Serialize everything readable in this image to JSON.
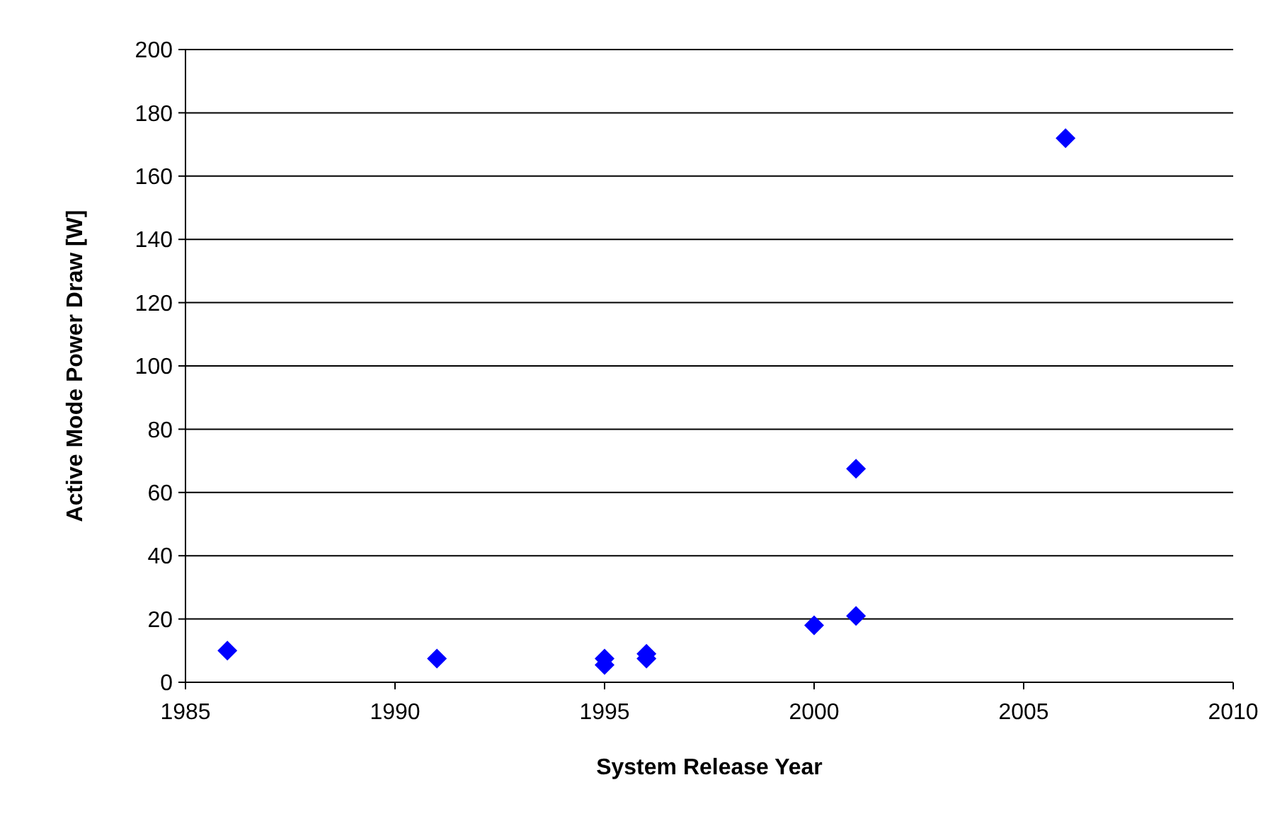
{
  "chart_data": {
    "type": "scatter",
    "xlabel": "System Release Year",
    "ylabel": "Active Mode Power Draw [W]",
    "x": [
      1986,
      1991,
      1995,
      1995,
      1996,
      1996,
      2000,
      2001,
      2001,
      2006
    ],
    "series": [
      {
        "color": "#0000ff",
        "values": [
          10,
          7.5,
          7.5,
          5.5,
          9,
          7.5,
          18,
          21,
          67.5,
          172
        ]
      }
    ],
    "marker": "diamond",
    "grid": "y",
    "xlim": [
      1985,
      2010
    ],
    "xticks": [
      1985,
      1990,
      1995,
      2000,
      2005,
      2010
    ],
    "ylim": [
      0,
      200
    ],
    "yticks": [
      0,
      20,
      40,
      60,
      80,
      100,
      120,
      140,
      160,
      180,
      200
    ]
  }
}
